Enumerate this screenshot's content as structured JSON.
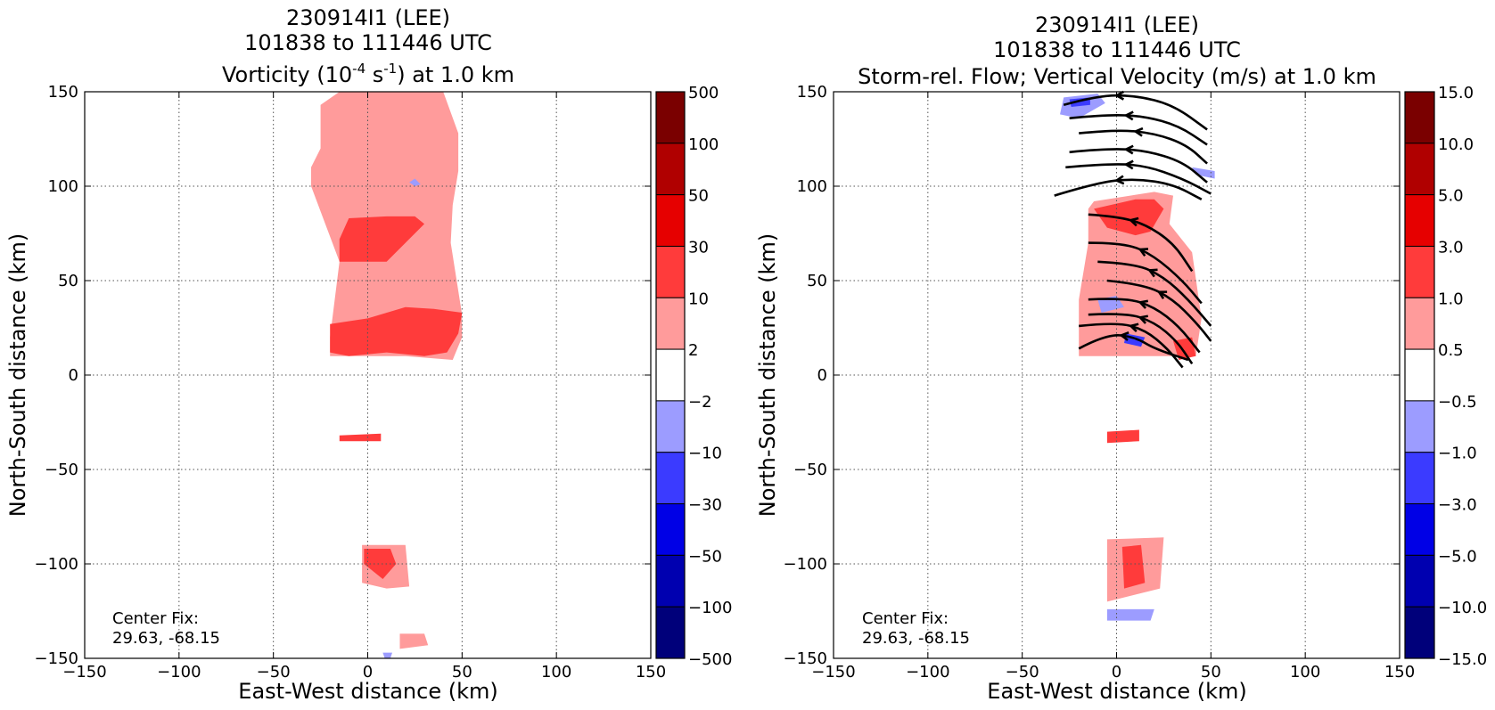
{
  "figure": {
    "panels": [
      {
        "id": "vorticity",
        "title_line1": "230914I1 (LEE)",
        "title_line2": "101838 to 111446 UTC",
        "title_line3_pre": "Vorticity (10",
        "title_line3_sup1": "-4",
        "title_line3_mid": " s",
        "title_line3_sup2": "-1",
        "title_line3_post": ") at 1.0 km",
        "xlabel": "East-West distance (km)",
        "ylabel": "North-South distance (km)",
        "center_fix_label": "Center Fix:",
        "center_fix_value": "29.63, -68.15",
        "xticks": [
          "−150",
          "−100",
          "−50",
          "0",
          "50",
          "100",
          "150"
        ],
        "yticks": [
          "150",
          "100",
          "50",
          "0",
          "−50",
          "−100",
          "−150"
        ],
        "colorbar_labels": [
          "500",
          "100",
          "50",
          "30",
          "10",
          "2",
          "−2",
          "−10",
          "−30",
          "−50",
          "−100",
          "−500"
        ]
      },
      {
        "id": "vertical-velocity",
        "title_line1": "230914I1 (LEE)",
        "title_line2": "101838 to 111446 UTC",
        "title_line3": "Storm-rel. Flow; Vertical Velocity (m/s) at 1.0 km",
        "xlabel": "East-West distance (km)",
        "ylabel": "North-South distance (km)",
        "center_fix_label": "Center Fix:",
        "center_fix_value": "29.63, -68.15",
        "xticks": [
          "−150",
          "−100",
          "−50",
          "0",
          "50",
          "100",
          "150"
        ],
        "yticks": [
          "150",
          "100",
          "50",
          "0",
          "−50",
          "−100",
          "−150"
        ],
        "colorbar_labels": [
          "15.0",
          "10.0",
          "5.0",
          "3.0",
          "1.0",
          "0.5",
          "−0.5",
          "−1.0",
          "−3.0",
          "−5.0",
          "−10.0",
          "−15.0"
        ]
      }
    ],
    "colorbar_colors": [
      "#7a0000",
      "#b00000",
      "#e60000",
      "#ff3b3b",
      "#ff9b9b",
      "#ffffff",
      "#9c9cff",
      "#3b3bff",
      "#0000e6",
      "#0000b0",
      "#00007a"
    ]
  },
  "chart_data": [
    {
      "type": "heatmap",
      "title": "230914I1 (LEE) 101838 to 111446 UTC Vorticity (10^-4 s^-1) at 1.0 km",
      "xlabel": "East-West distance (km)",
      "ylabel": "North-South distance (km)",
      "xlim": [
        -150,
        150
      ],
      "ylim": [
        -150,
        150
      ],
      "grid": true,
      "colorbar_levels": [
        -500,
        -100,
        -50,
        -30,
        -10,
        -2,
        2,
        10,
        30,
        50,
        100,
        500
      ],
      "regions": [
        {
          "level": "2 to 10",
          "color": "#ff9b9b",
          "polygon": [
            [
              -25,
              143
            ],
            [
              -15,
              150
            ],
            [
              40,
              150
            ],
            [
              48,
              128
            ],
            [
              48,
              108
            ],
            [
              45,
              90
            ],
            [
              44,
              70
            ],
            [
              50,
              32
            ],
            [
              50,
              20
            ],
            [
              45,
              8
            ],
            [
              20,
              10
            ],
            [
              -20,
              10
            ],
            [
              -20,
              20
            ],
            [
              -15,
              60
            ],
            [
              -30,
              100
            ],
            [
              -30,
              110
            ],
            [
              -25,
              120
            ]
          ]
        },
        {
          "level": "10 to 30",
          "color": "#ff3b3b",
          "polygon": [
            [
              -20,
              27
            ],
            [
              0,
              30
            ],
            [
              20,
              36
            ],
            [
              35,
              35
            ],
            [
              50,
              33
            ],
            [
              48,
              22
            ],
            [
              42,
              12
            ],
            [
              30,
              10
            ],
            [
              10,
              12
            ],
            [
              -10,
              10
            ],
            [
              -20,
              12
            ]
          ]
        },
        {
          "level": "10 to 30",
          "color": "#ff3b3b",
          "polygon": [
            [
              -10,
              83
            ],
            [
              10,
              84
            ],
            [
              25,
              84
            ],
            [
              30,
              80
            ],
            [
              20,
              70
            ],
            [
              10,
              60
            ],
            [
              -15,
              60
            ],
            [
              -15,
              72
            ]
          ]
        },
        {
          "level": "-2 to -10",
          "color": "#9c9cff",
          "polygon": [
            [
              22,
              102
            ],
            [
              25,
              100
            ],
            [
              28,
              101
            ],
            [
              25,
              104
            ]
          ]
        },
        {
          "level": "10 to 30",
          "color": "#ff3b3b",
          "polygon": [
            [
              -15,
              -32
            ],
            [
              7,
              -31
            ],
            [
              7,
              -35
            ],
            [
              -15,
              -35
            ]
          ]
        },
        {
          "level": "2 to 10",
          "color": "#ff9b9b",
          "polygon": [
            [
              -3,
              -90
            ],
            [
              20,
              -90
            ],
            [
              22,
              -112
            ],
            [
              10,
              -113
            ],
            [
              -3,
              -110
            ]
          ]
        },
        {
          "level": "10 to 30",
          "color": "#ff3b3b",
          "polygon": [
            [
              -2,
              -92
            ],
            [
              12,
              -92
            ],
            [
              15,
              -100
            ],
            [
              8,
              -108
            ],
            [
              -2,
              -100
            ]
          ]
        },
        {
          "level": "2 to 10",
          "color": "#ff9b9b",
          "polygon": [
            [
              17,
              -137
            ],
            [
              30,
              -137
            ],
            [
              32,
              -143
            ],
            [
              17,
              -145
            ]
          ]
        },
        {
          "level": "-2 to -10",
          "color": "#9c9cff",
          "polygon": [
            [
              8,
              -147
            ],
            [
              13,
              -147
            ],
            [
              12,
              -150
            ],
            [
              9,
              -150
            ]
          ]
        }
      ]
    },
    {
      "type": "heatmap",
      "title": "230914I1 (LEE) 101838 to 111446 UTC Storm-rel. Flow; Vertical Velocity (m/s) at 1.0 km",
      "xlabel": "East-West distance (km)",
      "ylabel": "North-South distance (km)",
      "xlim": [
        -150,
        150
      ],
      "ylim": [
        -150,
        150
      ],
      "grid": true,
      "colorbar_levels": [
        -15,
        -10,
        -5,
        -3,
        -1,
        -0.5,
        0.5,
        1,
        3,
        5,
        10,
        15
      ],
      "regions": [
        {
          "level": "-0.5 to -1.0",
          "color": "#9c9cff",
          "polygon": [
            [
              -28,
              147
            ],
            [
              -10,
              149
            ],
            [
              -6,
              144
            ],
            [
              -20,
              136
            ],
            [
              -30,
              138
            ]
          ]
        },
        {
          "level": "-1.0 to -3.0",
          "color": "#3b3bff",
          "polygon": [
            [
              -25,
              146
            ],
            [
              -14,
              147
            ],
            [
              -14,
              143
            ],
            [
              -24,
              142
            ]
          ]
        },
        {
          "level": "0.5 to 1.0",
          "color": "#ff9b9b",
          "polygon": [
            [
              -12,
              92
            ],
            [
              20,
              97
            ],
            [
              30,
              95
            ],
            [
              28,
              80
            ],
            [
              40,
              65
            ],
            [
              45,
              30
            ],
            [
              42,
              10
            ],
            [
              -20,
              10
            ],
            [
              -20,
              40
            ],
            [
              -15,
              70
            ],
            [
              -15,
              88
            ]
          ]
        },
        {
          "level": "1.0 to 3.0",
          "color": "#ff3b3b",
          "polygon": [
            [
              -12,
              88
            ],
            [
              10,
              93
            ],
            [
              20,
              93
            ],
            [
              25,
              88
            ],
            [
              18,
              76
            ],
            [
              10,
              74
            ],
            [
              -5,
              78
            ]
          ]
        },
        {
          "level": "-0.5 to -1.0",
          "color": "#9c9cff",
          "polygon": [
            [
              -10,
              40
            ],
            [
              0,
              42
            ],
            [
              4,
              36
            ],
            [
              -8,
              33
            ]
          ]
        },
        {
          "level": "-1.0 to -3.0",
          "color": "#3b3bff",
          "polygon": [
            [
              5,
              22
            ],
            [
              15,
              20
            ],
            [
              13,
              15
            ],
            [
              4,
              17
            ]
          ]
        },
        {
          "level": "1.0 to 3.0",
          "color": "#ff3b3b",
          "polygon": [
            [
              30,
              18
            ],
            [
              40,
              20
            ],
            [
              42,
              10
            ],
            [
              33,
              8
            ]
          ]
        },
        {
          "level": "-0.5 to -1.0",
          "color": "#9c9cff",
          "polygon": [
            [
              40,
              110
            ],
            [
              52,
              108
            ],
            [
              52,
              104
            ],
            [
              42,
              106
            ]
          ]
        },
        {
          "level": "1.0 to 3.0",
          "color": "#ff3b3b",
          "polygon": [
            [
              -5,
              -30
            ],
            [
              12,
              -29
            ],
            [
              12,
              -35
            ],
            [
              -5,
              -36
            ]
          ]
        },
        {
          "level": "0.5 to 1.0",
          "color": "#ff9b9b",
          "polygon": [
            [
              -5,
              -87
            ],
            [
              25,
              -86
            ],
            [
              23,
              -113
            ],
            [
              -5,
              -120
            ]
          ]
        },
        {
          "level": "1.0 to 3.0",
          "color": "#ff3b3b",
          "polygon": [
            [
              3,
              -91
            ],
            [
              13,
              -90
            ],
            [
              15,
              -110
            ],
            [
              4,
              -113
            ]
          ]
        },
        {
          "level": "-0.5 to -1.0",
          "color": "#9c9cff",
          "polygon": [
            [
              -5,
              -124
            ],
            [
              20,
              -124
            ],
            [
              18,
              -130
            ],
            [
              -5,
              -130
            ]
          ]
        }
      ],
      "streamlines": [
        [
          [
            -28,
            143
          ],
          [
            -10,
            148
          ],
          [
            10,
            148
          ],
          [
            30,
            143
          ],
          [
            48,
            130
          ]
        ],
        [
          [
            -25,
            136
          ],
          [
            -5,
            138
          ],
          [
            15,
            137
          ],
          [
            33,
            132
          ],
          [
            48,
            122
          ]
        ],
        [
          [
            -20,
            128
          ],
          [
            0,
            130
          ],
          [
            20,
            128
          ],
          [
            37,
            122
          ],
          [
            48,
            112
          ]
        ],
        [
          [
            -25,
            118
          ],
          [
            -5,
            120
          ],
          [
            15,
            119
          ],
          [
            35,
            113
          ],
          [
            48,
            102
          ]
        ],
        [
          [
            -27,
            110
          ],
          [
            -5,
            112
          ],
          [
            15,
            111
          ],
          [
            35,
            104
          ],
          [
            50,
            96
          ]
        ],
        [
          [
            -33,
            95
          ],
          [
            -10,
            102
          ],
          [
            10,
            104
          ],
          [
            30,
            101
          ],
          [
            45,
            93
          ]
        ],
        [
          [
            -15,
            85
          ],
          [
            0,
            84
          ],
          [
            15,
            80
          ],
          [
            30,
            70
          ],
          [
            40,
            55
          ]
        ],
        [
          [
            -15,
            70
          ],
          [
            5,
            70
          ],
          [
            20,
            63
          ],
          [
            35,
            50
          ],
          [
            45,
            38
          ]
        ],
        [
          [
            -10,
            60
          ],
          [
            10,
            59
          ],
          [
            25,
            52
          ],
          [
            38,
            40
          ],
          [
            50,
            26
          ]
        ],
        [
          [
            -5,
            50
          ],
          [
            15,
            48
          ],
          [
            30,
            40
          ],
          [
            42,
            28
          ],
          [
            50,
            18
          ]
        ],
        [
          [
            -15,
            40
          ],
          [
            5,
            41
          ],
          [
            20,
            36
          ],
          [
            33,
            26
          ],
          [
            44,
            12
          ]
        ],
        [
          [
            -15,
            32
          ],
          [
            5,
            33
          ],
          [
            20,
            28
          ],
          [
            32,
            18
          ],
          [
            40,
            6
          ]
        ],
        [
          [
            -20,
            26
          ],
          [
            0,
            28
          ],
          [
            15,
            24
          ],
          [
            27,
            14
          ],
          [
            35,
            4
          ]
        ],
        [
          [
            -20,
            14
          ],
          [
            -5,
            22
          ],
          [
            10,
            20
          ],
          [
            20,
            14
          ],
          [
            38,
            8
          ]
        ]
      ]
    }
  ]
}
